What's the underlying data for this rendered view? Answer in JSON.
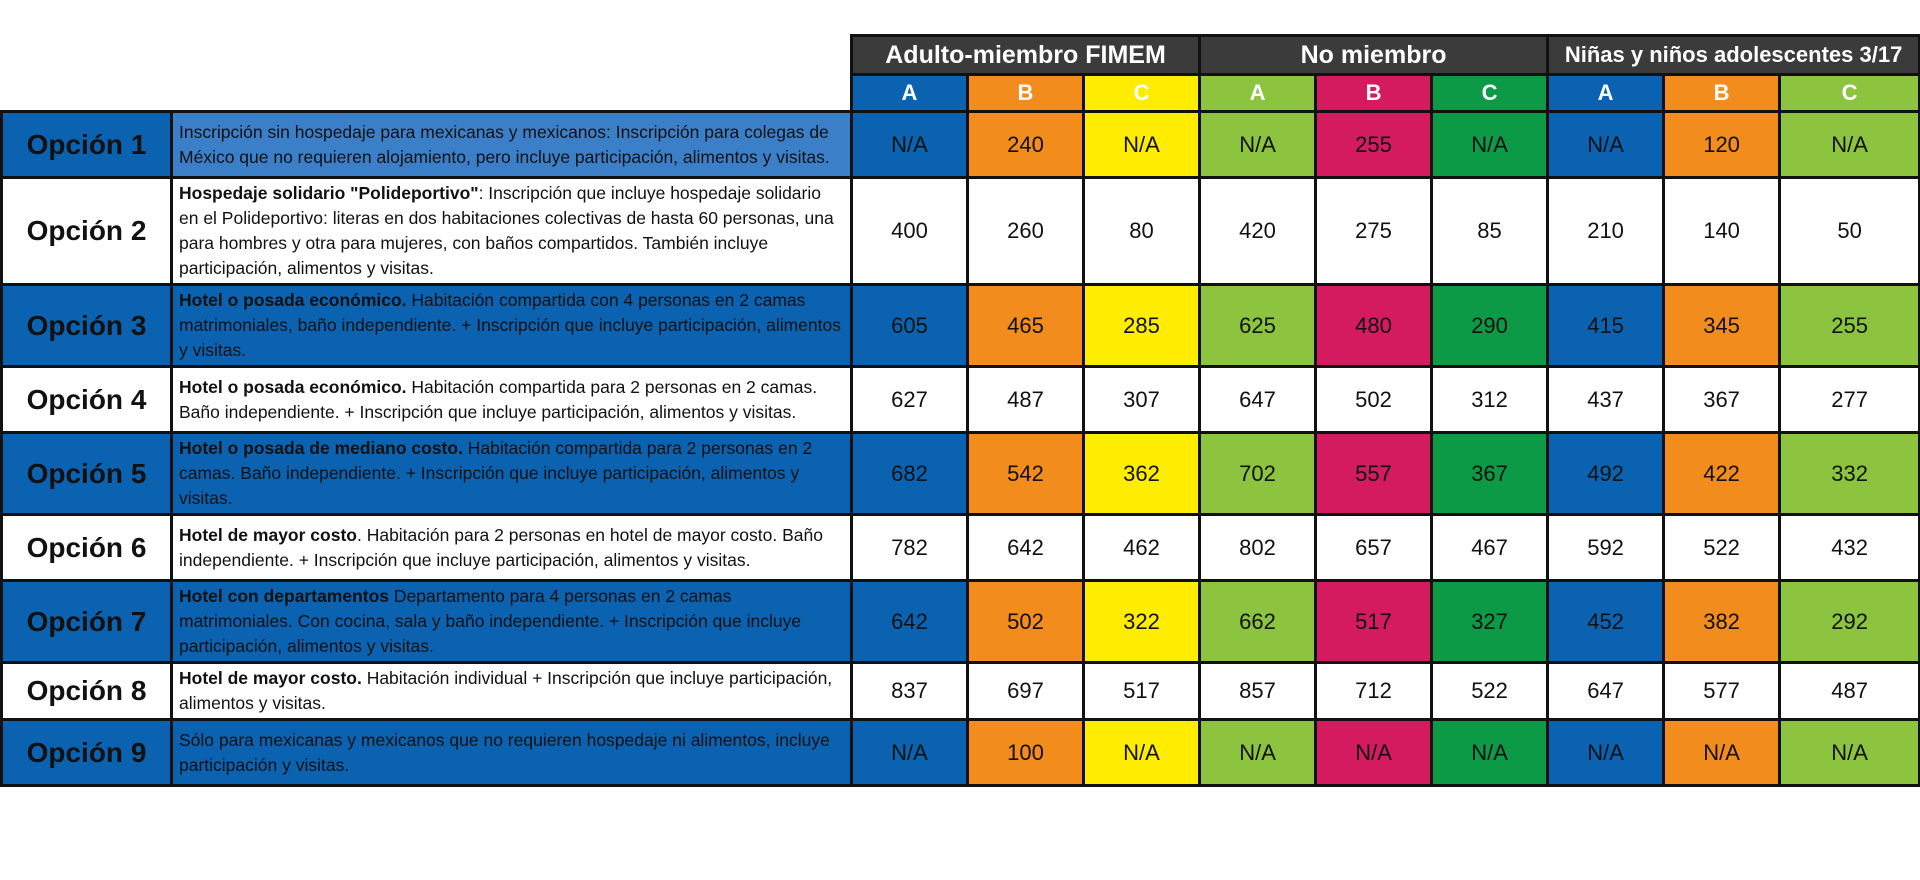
{
  "colors": {
    "blue": "#0a62b0",
    "orange": "#f28c1d",
    "yellow": "#ffed00",
    "lightgreen": "#8cc33f",
    "magenta": "#d41b5f",
    "darkgreen": "#0c9a46",
    "desc_blue_first": "#3c7fc9",
    "header_dark": "#3b3b3b"
  },
  "groups": [
    {
      "title": "Adulto-miembro FIMEM",
      "cols": [
        "A",
        "B",
        "C"
      ],
      "colors": [
        "#0a62b0",
        "#f28c1d",
        "#ffed00"
      ]
    },
    {
      "title": "No miembro",
      "cols": [
        "A",
        "B",
        "C"
      ],
      "colors": [
        "#8cc33f",
        "#d41b5f",
        "#0c9a46"
      ]
    },
    {
      "title": "Niñas y niños adolescentes 3/17",
      "cols": [
        "A",
        "B",
        "C"
      ],
      "colors": [
        "#0a62b0",
        "#f28c1d",
        "#8cc33f"
      ]
    }
  ],
  "options": [
    {
      "label": "Opción 1",
      "desc_bold": "",
      "desc_text": "Inscripción sin hospedaje para mexicanas y mexicanos: Inscripción para colegas de México que no requieren alojamiento, pero incluye participación, alimentos y visitas.",
      "values": [
        "N/A",
        "240",
        "N/A",
        "N/A",
        "255",
        "N/A",
        "N/A",
        "120",
        "N/A"
      ]
    },
    {
      "label": "Opción 2",
      "desc_bold": "Hospedaje solidario \"Polideportivo\"",
      "desc_text": ": Inscripción que incluye hospedaje solidario en el Polideportivo: literas en dos habitaciones colectivas de hasta 60 personas, una para hombres y otra para mujeres, con baños compartidos. También incluye participación, alimentos y visitas.",
      "values": [
        "400",
        "260",
        "80",
        "420",
        "275",
        "85",
        "210",
        "140",
        "50"
      ]
    },
    {
      "label": "Opción 3",
      "desc_bold": " Hotel o posada económico.",
      "desc_text": " Habitación compartida con 4 personas en 2 camas matrimoniales, baño independiente. + Inscripción que incluye participación, alimentos y visitas.",
      "values": [
        "605",
        "465",
        "285",
        "625",
        "480",
        "290",
        "415",
        "345",
        "255"
      ]
    },
    {
      "label": "Opción 4",
      "desc_bold": "Hotel o posada económico.",
      "desc_text": " Habitación compartida para 2 personas en 2 camas. Baño independiente. + Inscripción que incluye participación, alimentos y visitas.",
      "values": [
        "627",
        "487",
        "307",
        "647",
        "502",
        "312",
        "437",
        "367",
        "277"
      ]
    },
    {
      "label": "Opción 5",
      "desc_bold": "Hotel o posada de mediano costo.",
      "desc_text": " Habitación compartida para 2 personas en 2 camas. Baño independiente. + Inscripción que incluye participación, alimentos y visitas.",
      "values": [
        "682",
        "542",
        "362",
        "702",
        "557",
        "367",
        "492",
        "422",
        "332"
      ]
    },
    {
      "label": "Opción 6",
      "desc_bold": "Hotel de mayor costo",
      "desc_text": ". Habitación para 2 personas en hotel de mayor costo. Baño independiente. + Inscripción que incluye participación, alimentos y visitas.",
      "values": [
        "782",
        "642",
        "462",
        "802",
        "657",
        "467",
        "592",
        "522",
        "432"
      ]
    },
    {
      "label": "Opción 7",
      "desc_bold": "Hotel con departamentos",
      "desc_text": " Departamento para 4 personas en 2 camas matrimoniales. Con cocina, sala y baño independiente. + Inscripción que incluye participación, alimentos y visitas.",
      "values": [
        "642",
        "502",
        "322",
        "662",
        "517",
        "327",
        "452",
        "382",
        "292"
      ]
    },
    {
      "label": "Opción 8",
      "desc_bold": "Hotel de mayor costo.",
      "desc_text": " Habitación individual + Inscripción que incluye participación, alimentos y visitas.",
      "values": [
        "837",
        "697",
        "517",
        "857",
        "712",
        "522",
        "647",
        "577",
        "487"
      ]
    },
    {
      "label": "Opción 9",
      "desc_bold": "",
      "desc_text": "Sólo para mexicanas y mexicanos que no requieren hospedaje ni alimentos, incluye participación y visitas.",
      "values": [
        "N/A",
        "100",
        "N/A",
        "N/A",
        "N/A",
        "N/A",
        "N/A",
        "N/A",
        "N/A"
      ]
    }
  ]
}
